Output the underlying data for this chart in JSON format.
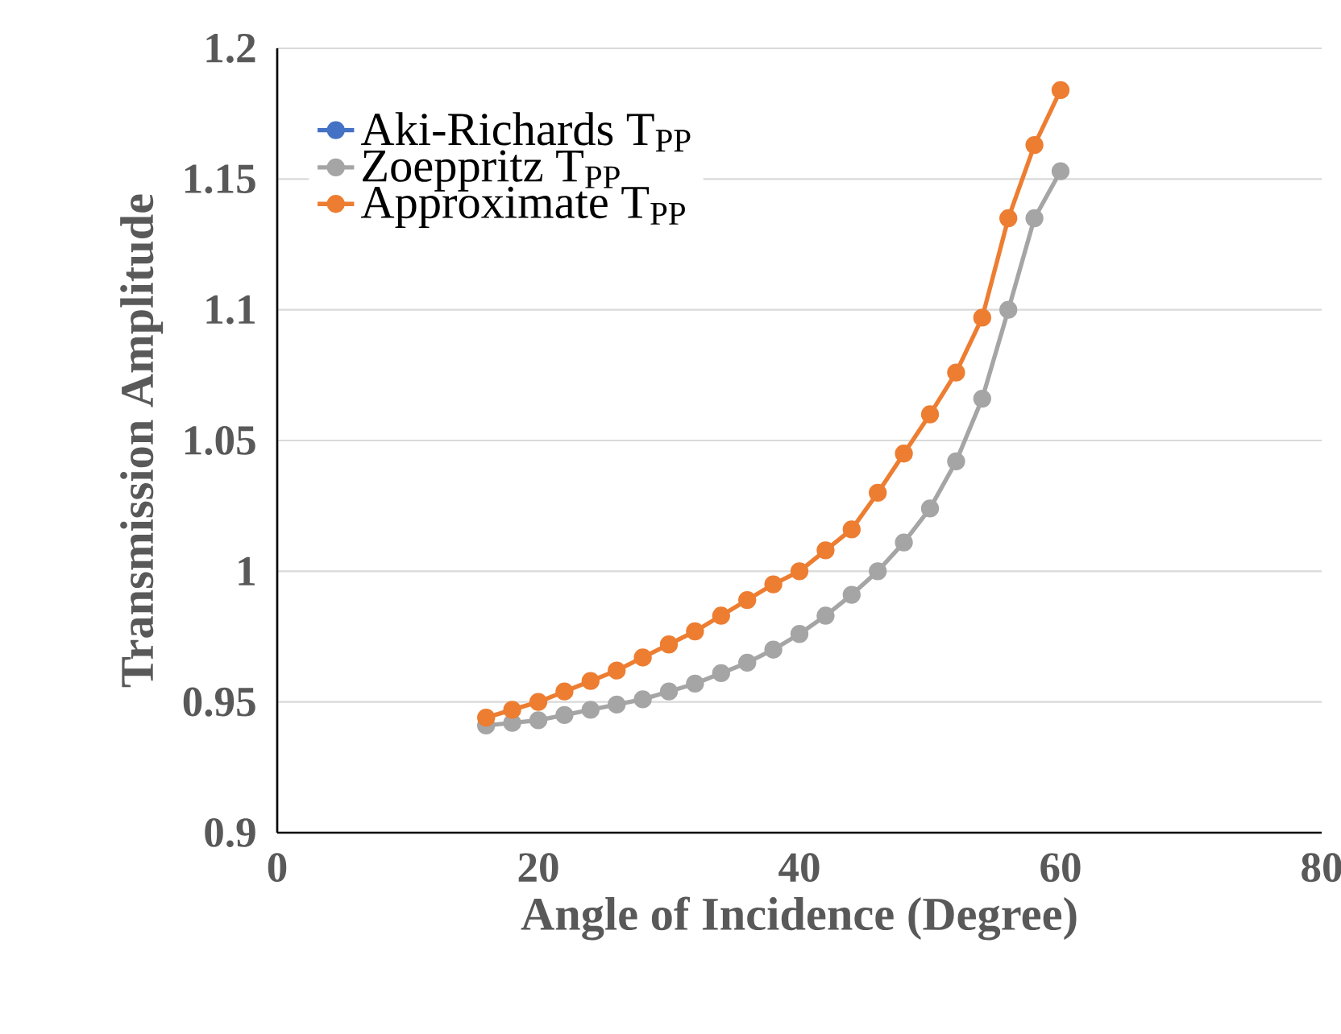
{
  "chart_data": {
    "type": "line",
    "xlabel": "Angle of Incidence (Degree)",
    "ylabel": "Transmission Amplitude",
    "x": [
      16,
      18,
      20,
      22,
      24,
      26,
      28,
      30,
      32,
      34,
      36,
      38,
      40,
      42,
      44,
      46,
      48,
      50,
      52,
      54,
      56,
      58,
      60
    ],
    "series": [
      {
        "name": "Aki-Richards T$_{PP}$",
        "color": "#4472c4",
        "values": [
          null,
          null,
          null,
          null,
          null,
          null,
          null,
          null,
          null,
          null,
          null,
          null,
          null,
          null,
          null,
          null,
          null,
          null,
          null,
          null,
          null,
          null,
          null
        ]
      },
      {
        "name": "Zoeppritz T$_{PP}$",
        "color": "#a5a5a5",
        "values": [
          0.941,
          0.942,
          0.943,
          0.945,
          0.947,
          0.949,
          0.951,
          0.954,
          0.957,
          0.961,
          0.965,
          0.97,
          0.976,
          0.983,
          0.991,
          1.0,
          1.011,
          1.024,
          1.042,
          1.066,
          1.1,
          1.135,
          1.153
        ]
      },
      {
        "name": "Approximate T$_{PP}$",
        "color": "#ed7d31",
        "values": [
          0.944,
          0.947,
          0.95,
          0.954,
          0.958,
          0.962,
          0.967,
          0.972,
          0.977,
          0.983,
          0.989,
          0.995,
          1.0,
          1.008,
          1.016,
          1.03,
          1.045,
          1.06,
          1.076,
          1.097,
          1.135,
          1.163,
          1.184
        ]
      }
    ],
    "xlim": [
      0,
      80
    ],
    "xticks": [
      0,
      20,
      40,
      60,
      80
    ],
    "ylim": [
      0.9,
      1.2
    ],
    "yticks": [
      0.9,
      0.95,
      1,
      1.05,
      1.1,
      1.15,
      1.2
    ],
    "grid": "y",
    "legend": "top left",
    "marker": "circle",
    "line_style": "solid"
  }
}
